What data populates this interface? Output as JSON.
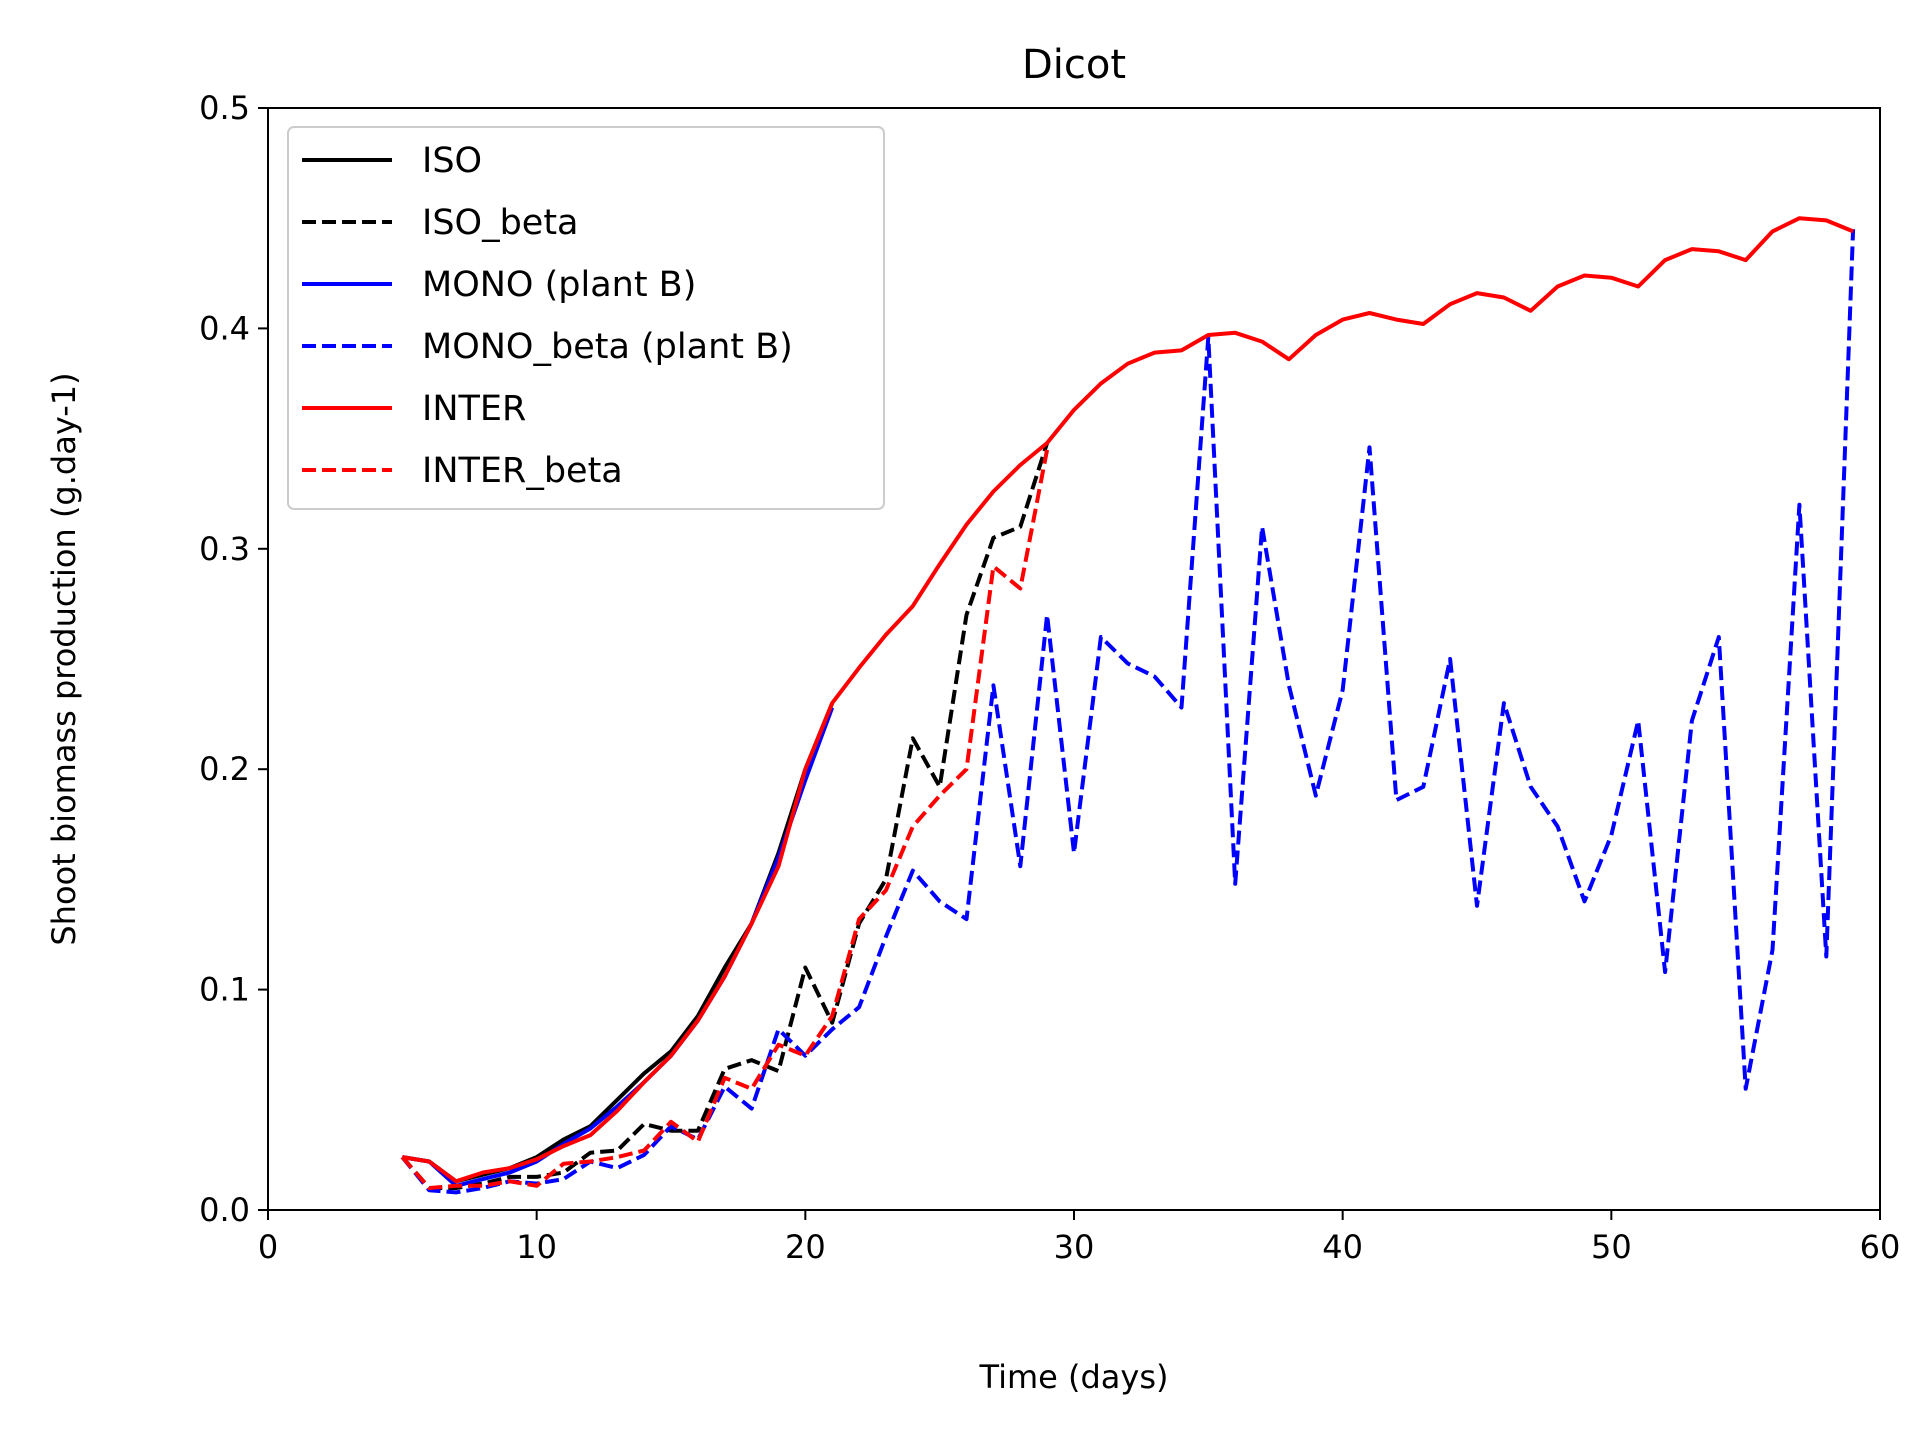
{
  "chart_data": {
    "type": "line",
    "title": "Dicot",
    "xlabel": "Time (days)",
    "ylabel": "Shoot biomass production (g.day-1)",
    "xlim": [
      0,
      60
    ],
    "ylim": [
      0,
      0.5
    ],
    "xticks": [
      0,
      10,
      20,
      30,
      40,
      50,
      60
    ],
    "xtick_labels": [
      "0",
      "10",
      "20",
      "30",
      "40",
      "50",
      "60"
    ],
    "yticks": [
      0,
      0.1,
      0.2,
      0.3,
      0.4,
      0.5
    ],
    "ytick_labels": [
      "0.0",
      "0.1",
      "0.2",
      "0.3",
      "0.4",
      "0.5"
    ],
    "grid": false,
    "legend_position": "top-left",
    "series": [
      {
        "name": "ISO",
        "color": "#000000",
        "style": "solid",
        "x": [
          5,
          6,
          7,
          8,
          9,
          10,
          11,
          12,
          13,
          14,
          15,
          16,
          17,
          18,
          19,
          20,
          21
        ],
        "y": [
          0.024,
          0.022,
          0.013,
          0.016,
          0.019,
          0.024,
          0.032,
          0.038,
          0.05,
          0.062,
          0.072,
          0.088,
          0.11,
          0.13,
          0.162,
          0.2,
          0.23
        ]
      },
      {
        "name": "ISO_beta",
        "color": "#000000",
        "style": "dashed",
        "x": [
          5,
          6,
          7,
          8,
          9,
          10,
          11,
          12,
          13,
          14,
          15,
          16,
          17,
          18,
          19,
          20,
          21,
          22,
          23,
          24,
          25,
          26,
          27,
          28,
          29
        ],
        "y": [
          0.024,
          0.01,
          0.01,
          0.012,
          0.015,
          0.015,
          0.017,
          0.026,
          0.027,
          0.039,
          0.036,
          0.036,
          0.064,
          0.068,
          0.063,
          0.11,
          0.085,
          0.13,
          0.15,
          0.214,
          0.192,
          0.27,
          0.305,
          0.31,
          0.348
        ]
      },
      {
        "name": "MONO (plant B)",
        "color": "#0000ff",
        "style": "solid",
        "x": [
          5,
          6,
          7,
          8,
          9,
          10,
          11,
          12,
          13,
          14,
          15,
          16,
          17,
          18,
          19,
          20,
          21
        ],
        "y": [
          0.024,
          0.022,
          0.011,
          0.014,
          0.017,
          0.022,
          0.03,
          0.037,
          0.047,
          0.058,
          0.07,
          0.086,
          0.106,
          0.13,
          0.16,
          0.195,
          0.228
        ]
      },
      {
        "name": "MONO_beta (plant B)",
        "color": "#0000ff",
        "style": "dashed",
        "x": [
          5,
          6,
          7,
          8,
          9,
          10,
          11,
          12,
          13,
          14,
          15,
          16,
          17,
          18,
          19,
          20,
          21,
          22,
          23,
          24,
          25,
          26,
          27,
          28,
          29,
          30,
          31,
          32,
          33,
          34,
          35,
          36,
          37,
          38,
          39,
          40,
          41,
          42,
          43,
          44,
          45,
          46,
          47,
          48,
          49,
          50,
          51,
          52,
          53,
          54,
          55,
          56,
          57,
          58,
          59
        ],
        "y": [
          0.024,
          0.009,
          0.008,
          0.01,
          0.013,
          0.012,
          0.014,
          0.022,
          0.019,
          0.025,
          0.038,
          0.032,
          0.056,
          0.046,
          0.082,
          0.07,
          0.082,
          0.092,
          0.124,
          0.154,
          0.14,
          0.132,
          0.238,
          0.156,
          0.27,
          0.162,
          0.26,
          0.248,
          0.242,
          0.228,
          0.396,
          0.148,
          0.31,
          0.238,
          0.188,
          0.236,
          0.346,
          0.186,
          0.192,
          0.25,
          0.138,
          0.23,
          0.192,
          0.174,
          0.14,
          0.17,
          0.222,
          0.108,
          0.222,
          0.26,
          0.055,
          0.118,
          0.32,
          0.115,
          0.445
        ]
      },
      {
        "name": "INTER",
        "color": "#ff0000",
        "style": "solid",
        "x": [
          5,
          6,
          7,
          8,
          9,
          10,
          11,
          12,
          13,
          14,
          15,
          16,
          17,
          18,
          19,
          20,
          21,
          22,
          23,
          24,
          25,
          26,
          27,
          28,
          29,
          30,
          31,
          32,
          33,
          34,
          35,
          36,
          37,
          38,
          39,
          40,
          41,
          42,
          43,
          44,
          45,
          46,
          47,
          48,
          49,
          50,
          51,
          52,
          53,
          54,
          55,
          56,
          57,
          58,
          59
        ],
        "y": [
          0.024,
          0.022,
          0.013,
          0.017,
          0.019,
          0.023,
          0.029,
          0.034,
          0.045,
          0.058,
          0.07,
          0.086,
          0.106,
          0.13,
          0.156,
          0.2,
          0.23,
          0.246,
          0.261,
          0.274,
          0.293,
          0.311,
          0.326,
          0.338,
          0.348,
          0.363,
          0.375,
          0.384,
          0.389,
          0.39,
          0.397,
          0.398,
          0.394,
          0.386,
          0.397,
          0.404,
          0.407,
          0.404,
          0.402,
          0.411,
          0.416,
          0.414,
          0.408,
          0.419,
          0.424,
          0.423,
          0.419,
          0.431,
          0.436,
          0.435,
          0.431,
          0.444,
          0.45,
          0.449,
          0.444
        ]
      },
      {
        "name": "INTER_beta",
        "color": "#ff0000",
        "style": "dashed",
        "x": [
          5,
          6,
          7,
          8,
          9,
          10,
          11,
          12,
          13,
          14,
          15,
          16,
          17,
          18,
          19,
          20,
          21,
          22,
          23,
          24,
          25,
          26,
          27,
          28,
          29
        ],
        "y": [
          0.024,
          0.01,
          0.011,
          0.011,
          0.013,
          0.011,
          0.021,
          0.022,
          0.024,
          0.027,
          0.04,
          0.031,
          0.06,
          0.055,
          0.075,
          0.07,
          0.088,
          0.132,
          0.145,
          0.174,
          0.188,
          0.2,
          0.292,
          0.282,
          0.345
        ]
      }
    ]
  }
}
